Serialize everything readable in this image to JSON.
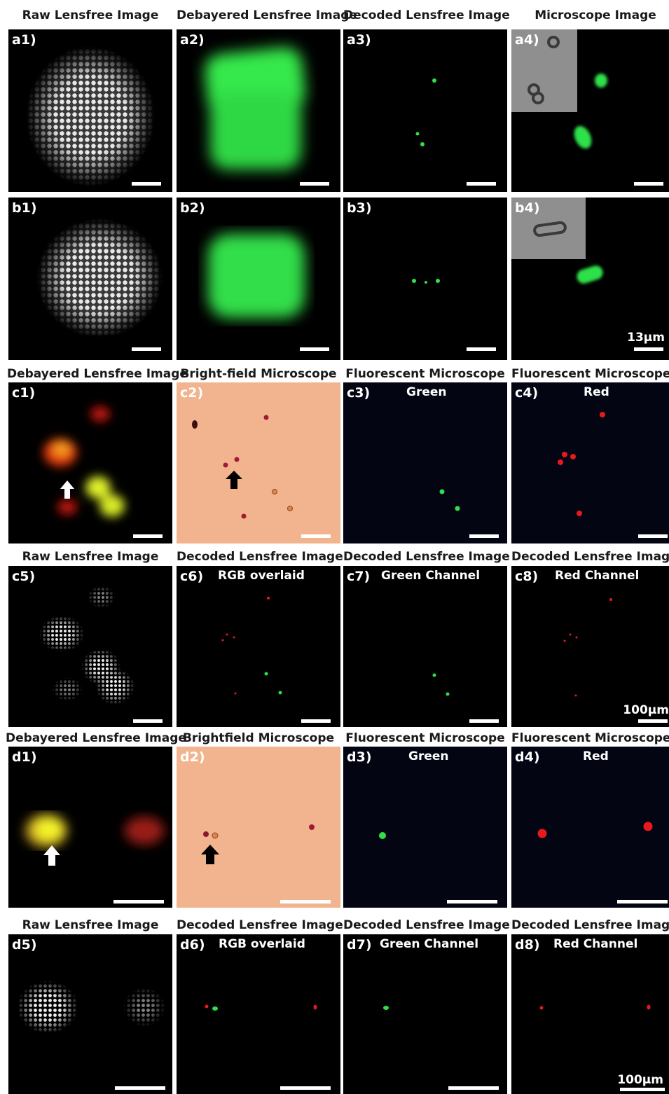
{
  "rows": [
    {
      "id": "a",
      "titles": [
        "Raw Lensfree Image",
        "Debayered Lensfree Image",
        "Decoded Lensfree Image",
        "Microscope Image"
      ],
      "panels": [
        {
          "label": "a1)",
          "type": "raw-lensfree-blob"
        },
        {
          "label": "a2)",
          "type": "debayered-green-blob"
        },
        {
          "label": "a3)",
          "type": "decoded-green-dots"
        },
        {
          "label": "a4)",
          "type": "microscope-green-with-inset"
        }
      ]
    },
    {
      "id": "b",
      "titles": [],
      "panels": [
        {
          "label": "b1)",
          "type": "raw-lensfree-blob"
        },
        {
          "label": "b2)",
          "type": "debayered-green-blob"
        },
        {
          "label": "b3)",
          "type": "decoded-green-dots"
        },
        {
          "label": "b4)",
          "type": "microscope-green-with-inset",
          "scale_label": "13µm"
        }
      ]
    },
    {
      "id": "c-top",
      "titles": [
        "Debayered Lensfree Image",
        "Bright-field Microscope",
        "Fluorescent Microscope",
        "Fluorescent Microscope"
      ],
      "panels": [
        {
          "label": "c1)",
          "type": "debayered-rgb-cells"
        },
        {
          "label": "c2)",
          "type": "brightfield-cells"
        },
        {
          "label": "c3)",
          "subtitle": "Green",
          "type": "fluorescent-green"
        },
        {
          "label": "c4)",
          "subtitle": "Red",
          "type": "fluorescent-red"
        }
      ]
    },
    {
      "id": "c-bottom",
      "titles": [
        "Raw Lensfree Image",
        "Decoded Lensfree Image",
        "Decoded Lensfree Image",
        "Decoded Lensfree Image"
      ],
      "panels": [
        {
          "label": "c5)",
          "type": "raw-lensfree-cells"
        },
        {
          "label": "c6)",
          "subtitle": "RGB overlaid",
          "type": "decoded-rgb"
        },
        {
          "label": "c7)",
          "subtitle": "Green Channel",
          "type": "decoded-green"
        },
        {
          "label": "c8)",
          "subtitle": "Red Channel",
          "type": "decoded-red",
          "scale_label": "100µm"
        }
      ]
    },
    {
      "id": "d-top",
      "titles": [
        "Debayered Lensfree  Image",
        "Brightfield Microscope",
        "Fluorescent Microscope",
        "Fluorescent Microscope"
      ],
      "panels": [
        {
          "label": "d1)",
          "type": "debayered-rgb-cells"
        },
        {
          "label": "d2)",
          "type": "brightfield-cells"
        },
        {
          "label": "d3)",
          "subtitle": "Green",
          "type": "fluorescent-green"
        },
        {
          "label": "d4)",
          "subtitle": "Red",
          "type": "fluorescent-red"
        }
      ]
    },
    {
      "id": "d-bottom",
      "titles": [
        "Raw Lensfree Image",
        "Decoded Lensfree Image",
        "Decoded Lensfree Image",
        "Decoded Lensfree Image"
      ],
      "panels": [
        {
          "label": "d5)",
          "type": "raw-lensfree-cells"
        },
        {
          "label": "d6)",
          "subtitle": "RGB overlaid",
          "type": "decoded-rgb"
        },
        {
          "label": "d7)",
          "subtitle": "Green Channel",
          "type": "decoded-green"
        },
        {
          "label": "d8)",
          "subtitle": "Red Channel",
          "type": "decoded-red",
          "scale_label": "100µm"
        }
      ]
    }
  ],
  "colors": {
    "panel_background": "#000000",
    "brightfield_background": "#f2b48f",
    "fluorescent_background": "#030513",
    "green_signal": "#2fe04a",
    "red_signal": "#e8191e",
    "yellow_signal": "#e6f02a",
    "scale_bar": "#ffffff"
  }
}
